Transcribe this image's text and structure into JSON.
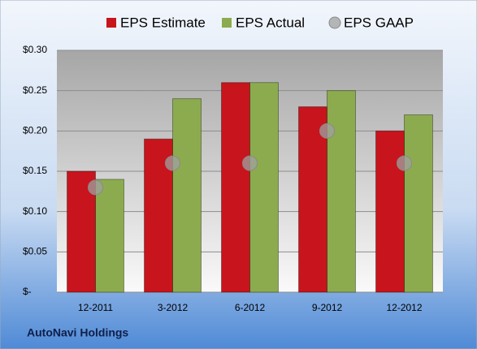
{
  "chart_data": {
    "type": "bar",
    "categories": [
      "12-2011",
      "3-2012",
      "6-2012",
      "9-2012",
      "12-2012"
    ],
    "series": [
      {
        "name": "EPS Estimate",
        "color": "#c8141c",
        "values": [
          0.15,
          0.19,
          0.26,
          0.23,
          0.2
        ]
      },
      {
        "name": "EPS Actual",
        "color": "#8cab4e",
        "values": [
          0.14,
          0.24,
          0.26,
          0.25,
          0.22
        ]
      },
      {
        "name": "EPS GAAP",
        "color": "#a0a0a0",
        "type": "scatter",
        "values": [
          0.13,
          0.16,
          0.16,
          0.2,
          0.16
        ]
      }
    ],
    "ylim": [
      0,
      0.3
    ],
    "yticks": [
      {
        "value": 0,
        "label": "$-"
      },
      {
        "value": 0.05,
        "label": "$0.05"
      },
      {
        "value": 0.1,
        "label": "$0.10"
      },
      {
        "value": 0.15,
        "label": "$0.15"
      },
      {
        "value": 0.2,
        "label": "$0.20"
      },
      {
        "value": 0.25,
        "label": "$0.25"
      },
      {
        "value": 0.3,
        "label": "$0.30"
      }
    ],
    "grid": true,
    "footer": "AutoNavi Holdings"
  }
}
